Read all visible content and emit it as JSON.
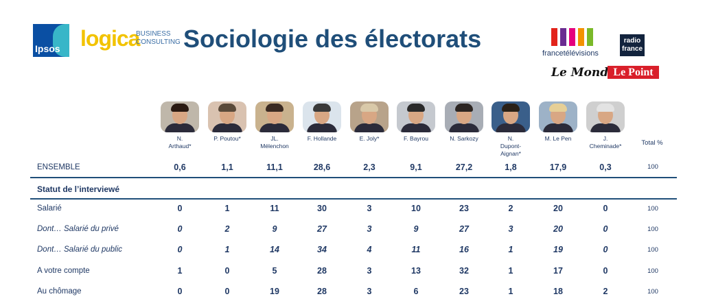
{
  "header": {
    "title": "Sociologie des électorats",
    "logos": {
      "ipsos": "Ipsos",
      "logica": "logica",
      "logica_sub": [
        "BUSINESS",
        "CONSULTING"
      ],
      "france_tv": "francetélévisions",
      "radio_france": [
        "radio",
        "france"
      ],
      "le_monde": "Le Monde",
      "le_point": "Le Point"
    }
  },
  "colors": {
    "title": "#1f4e79",
    "text": "#1f3864",
    "rule": "#1f4e79",
    "le_point_red": "#d91f2a",
    "ftv_bars": [
      "#e2231a",
      "#6a2c91",
      "#e5007e",
      "#f39200",
      "#7ab929"
    ]
  },
  "candidates": [
    {
      "name": "N.\nArthaud*",
      "icon": "portrait-arthaud"
    },
    {
      "name": "P. Poutou*",
      "icon": "portrait-poutou"
    },
    {
      "name": "JL.\nMélenchon",
      "icon": "portrait-melenchon"
    },
    {
      "name": "F. Hollande",
      "icon": "portrait-hollande"
    },
    {
      "name": "E. Joly*",
      "icon": "portrait-joly"
    },
    {
      "name": "F. Bayrou",
      "icon": "portrait-bayrou"
    },
    {
      "name": "N. Sarkozy",
      "icon": "portrait-sarkozy"
    },
    {
      "name": "N.\nDupont-\nAignan*",
      "icon": "portrait-dupont-aignan"
    },
    {
      "name": "M. Le Pen",
      "icon": "portrait-le-pen"
    },
    {
      "name": "J.\nCheminade*",
      "icon": "portrait-cheminade"
    }
  ],
  "total_header": "Total %",
  "ensemble": {
    "label": "ENSEMBLE",
    "values": [
      "0,6",
      "1,1",
      "11,1",
      "28,6",
      "2,3",
      "9,1",
      "27,2",
      "1,8",
      "17,9",
      "0,3"
    ],
    "total": "100"
  },
  "section_title": "Statut de l’interviewé",
  "rows": [
    {
      "label": "Salarié",
      "italic": false,
      "values": [
        "0",
        "1",
        "11",
        "30",
        "3",
        "10",
        "23",
        "2",
        "20",
        "0"
      ],
      "total": "100"
    },
    {
      "label": "Dont… Salarié du privé",
      "italic": true,
      "values": [
        "0",
        "2",
        "9",
        "27",
        "3",
        "9",
        "27",
        "3",
        "20",
        "0"
      ],
      "total": "100"
    },
    {
      "label": "Dont… Salarié du public",
      "italic": true,
      "values": [
        "0",
        "1",
        "14",
        "34",
        "4",
        "11",
        "16",
        "1",
        "19",
        "0"
      ],
      "total": "100"
    },
    {
      "label": "A votre compte",
      "italic": false,
      "values": [
        "1",
        "0",
        "5",
        "28",
        "3",
        "13",
        "32",
        "1",
        "17",
        "0"
      ],
      "total": "100"
    },
    {
      "label": "Au chômage",
      "italic": false,
      "values": [
        "0",
        "0",
        "19",
        "28",
        "3",
        "6",
        "23",
        "1",
        "18",
        "2"
      ],
      "total": "100"
    }
  ]
}
